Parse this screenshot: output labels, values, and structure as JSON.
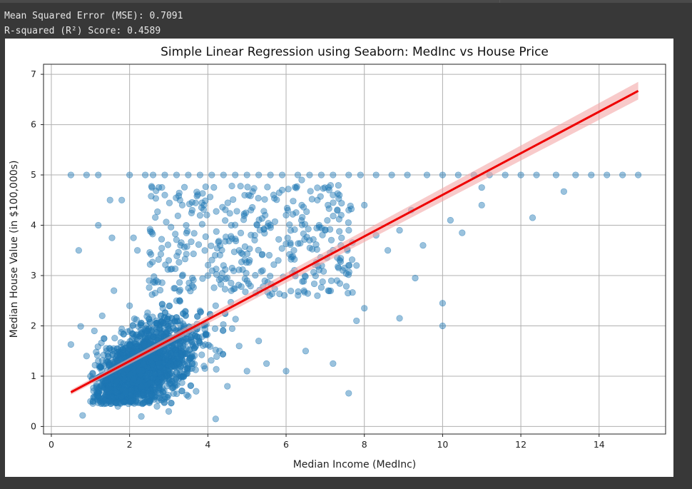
{
  "output": {
    "mse_line": "Mean Squared Error (MSE): 0.7091",
    "r2_line": "R-squared (R²) Score: 0.4589"
  },
  "colors": {
    "background": "#383838",
    "scatter": "#1f77b4",
    "regression_line": "#ee0000",
    "confidence_band": "#f4a6a6"
  },
  "chart_data": {
    "type": "scatter",
    "title": "Simple Linear Regression using Seaborn: MedInc vs House Price",
    "xlabel": "Median Income (MedInc)",
    "ylabel": "Median House Value (in $100,000s)",
    "xlim": [
      -0.2,
      15.7
    ],
    "ylim": [
      -0.15,
      7.2
    ],
    "xticks": [
      0,
      2,
      4,
      6,
      8,
      10,
      12,
      14
    ],
    "yticks": [
      0,
      1,
      2,
      3,
      4,
      5,
      6,
      7
    ],
    "grid": true,
    "regression_line": {
      "x": [
        0.5,
        15.0
      ],
      "y": [
        0.68,
        6.67
      ]
    },
    "confidence_band": {
      "x": [
        0.5,
        15.0
      ],
      "lower": [
        0.63,
        6.5
      ],
      "upper": [
        0.73,
        6.85
      ]
    },
    "points": [
      [
        0.5,
        5.0
      ],
      [
        0.9,
        5.0
      ],
      [
        1.2,
        5.0
      ],
      [
        2.0,
        5.0
      ],
      [
        2.4,
        5.0
      ],
      [
        2.6,
        5.0
      ],
      [
        2.9,
        5.0
      ],
      [
        3.2,
        5.0
      ],
      [
        3.5,
        5.0
      ],
      [
        3.8,
        5.0
      ],
      [
        4.1,
        5.0
      ],
      [
        4.4,
        5.0
      ],
      [
        4.7,
        5.0
      ],
      [
        5.0,
        5.0
      ],
      [
        5.3,
        5.0
      ],
      [
        5.6,
        5.0
      ],
      [
        5.9,
        5.0
      ],
      [
        6.3,
        5.0
      ],
      [
        6.6,
        5.0
      ],
      [
        6.9,
        5.0
      ],
      [
        7.2,
        5.0
      ],
      [
        7.6,
        5.0
      ],
      [
        7.9,
        5.0
      ],
      [
        8.3,
        5.0
      ],
      [
        8.7,
        5.0
      ],
      [
        9.1,
        5.0
      ],
      [
        9.6,
        5.0
      ],
      [
        10.0,
        5.0
      ],
      [
        10.4,
        5.0
      ],
      [
        10.8,
        5.0
      ],
      [
        11.2,
        5.0
      ],
      [
        11.6,
        5.0
      ],
      [
        12.0,
        5.0
      ],
      [
        12.4,
        5.0
      ],
      [
        12.9,
        5.0
      ],
      [
        13.4,
        5.0
      ],
      [
        13.8,
        5.0
      ],
      [
        14.2,
        5.0
      ],
      [
        14.6,
        5.0
      ],
      [
        15.0,
        5.0
      ],
      [
        0.5,
        1.63
      ],
      [
        0.7,
        3.5
      ],
      [
        0.75,
        1.99
      ],
      [
        0.8,
        0.22
      ],
      [
        1.2,
        4.0
      ],
      [
        1.5,
        4.5
      ],
      [
        1.8,
        4.5
      ],
      [
        1.55,
        3.75
      ],
      [
        2.1,
        3.75
      ],
      [
        2.9,
        4.6
      ],
      [
        3.6,
        4.3
      ],
      [
        4.2,
        0.15
      ],
      [
        3.0,
        0.3
      ],
      [
        2.3,
        0.2
      ],
      [
        1.0,
        1.0
      ],
      [
        1.2,
        1.3
      ],
      [
        1.4,
        0.9
      ],
      [
        1.6,
        1.5
      ],
      [
        1.8,
        1.1
      ],
      [
        2.0,
        1.6
      ],
      [
        2.2,
        1.3
      ],
      [
        2.4,
        1.9
      ],
      [
        2.6,
        1.5
      ],
      [
        2.8,
        2.2
      ],
      [
        3.0,
        1.8
      ],
      [
        3.2,
        2.5
      ],
      [
        3.4,
        2.0
      ],
      [
        3.6,
        2.8
      ],
      [
        3.8,
        2.3
      ],
      [
        4.0,
        3.0
      ],
      [
        4.2,
        2.4
      ],
      [
        4.4,
        3.2
      ],
      [
        4.6,
        2.7
      ],
      [
        4.8,
        3.5
      ],
      [
        5.0,
        2.9
      ],
      [
        5.2,
        3.8
      ],
      [
        5.4,
        3.1
      ],
      [
        5.6,
        4.0
      ],
      [
        5.8,
        3.3
      ],
      [
        6.0,
        4.2
      ],
      [
        6.2,
        3.5
      ],
      [
        6.4,
        4.4
      ],
      [
        6.6,
        3.7
      ],
      [
        6.8,
        4.5
      ],
      [
        7.0,
        3.9
      ],
      [
        7.2,
        4.6
      ],
      [
        7.4,
        3.6
      ],
      [
        7.6,
        4.3
      ],
      [
        7.8,
        3.2
      ],
      [
        8.0,
        4.4
      ],
      [
        8.3,
        3.8
      ],
      [
        8.6,
        3.5
      ],
      [
        8.9,
        3.9
      ],
      [
        9.2,
        4.3
      ],
      [
        9.5,
        3.6
      ],
      [
        9.3,
        2.95
      ],
      [
        10.0,
        2.45
      ],
      [
        10.0,
        2.0
      ],
      [
        10.2,
        4.1
      ],
      [
        10.5,
        3.85
      ],
      [
        11.0,
        4.4
      ],
      [
        11.0,
        4.75
      ],
      [
        12.3,
        4.15
      ],
      [
        13.1,
        4.67
      ],
      [
        7.6,
        0.66
      ],
      [
        7.2,
        1.25
      ],
      [
        8.0,
        2.35
      ],
      [
        8.9,
        2.15
      ],
      [
        7.8,
        2.1
      ],
      [
        6.5,
        1.5
      ],
      [
        6.0,
        1.1
      ],
      [
        5.5,
        1.25
      ],
      [
        5.0,
        1.1
      ],
      [
        4.5,
        0.8
      ],
      [
        3.5,
        0.6
      ],
      [
        2.5,
        0.5
      ],
      [
        1.5,
        0.5
      ],
      [
        2.0,
        2.4
      ],
      [
        2.5,
        2.9
      ],
      [
        3.0,
        3.3
      ],
      [
        3.3,
        3.6
      ],
      [
        2.2,
        3.5
      ],
      [
        1.6,
        2.7
      ],
      [
        1.3,
        2.2
      ],
      [
        1.1,
        1.9
      ],
      [
        0.9,
        1.4
      ],
      [
        1.0,
        0.5
      ],
      [
        1.7,
        0.4
      ],
      [
        2.7,
        0.4
      ],
      [
        3.7,
        0.7
      ],
      [
        4.8,
        1.6
      ],
      [
        5.3,
        1.7
      ],
      [
        6.8,
        2.6
      ],
      [
        7.3,
        2.9
      ],
      [
        3.9,
        1.2
      ],
      [
        4.3,
        1.5
      ],
      [
        3.1,
        1.0
      ],
      [
        2.3,
        0.8
      ],
      [
        1.9,
        0.7
      ],
      [
        4.6,
        4.0
      ],
      [
        5.1,
        4.3
      ],
      [
        5.9,
        4.7
      ],
      [
        6.4,
        4.9
      ],
      [
        7.1,
        4.7
      ],
      [
        3.9,
        4.4
      ]
    ]
  }
}
